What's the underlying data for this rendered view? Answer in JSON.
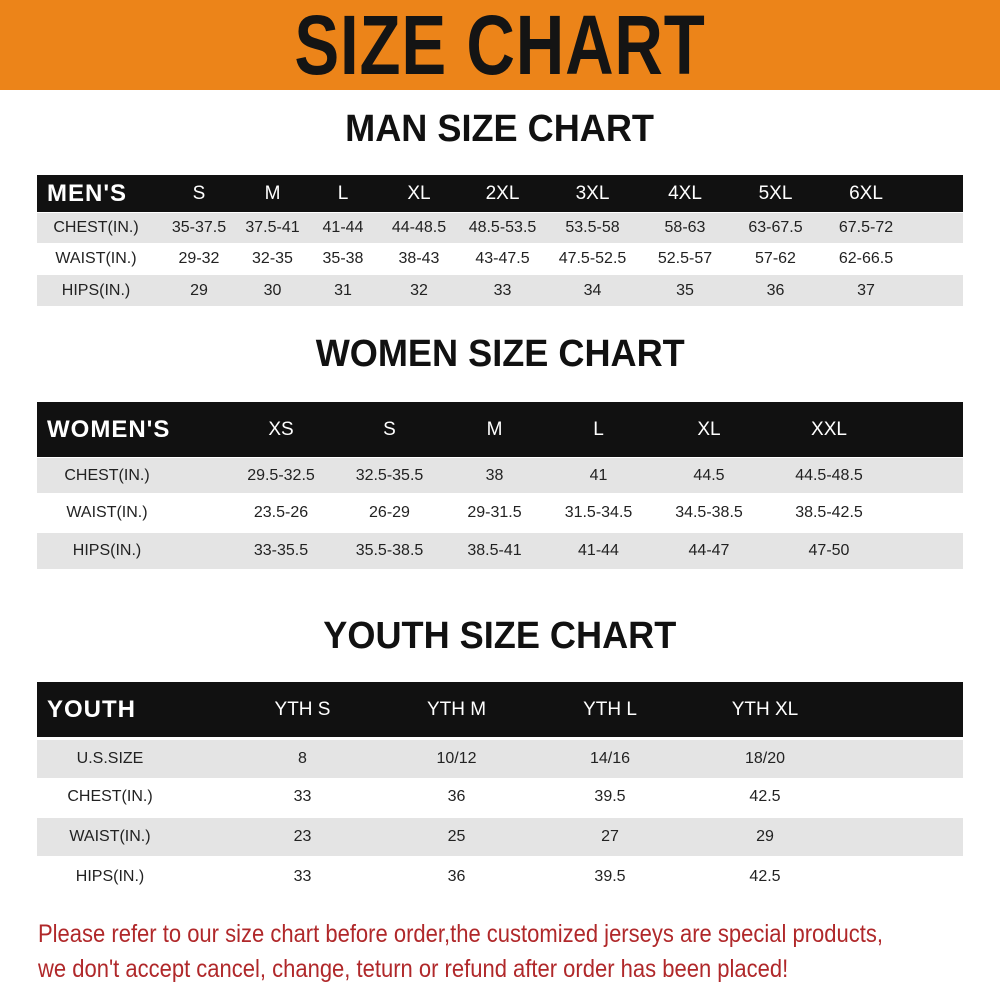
{
  "banner": {
    "title": "SIZE CHART",
    "color": "#ec8419"
  },
  "men": {
    "title": "MAN SIZE CHART",
    "header": [
      "MEN'S",
      "S",
      "M",
      "L",
      "XL",
      "2XL",
      "3XL",
      "4XL",
      "5XL",
      "6XL"
    ],
    "rows": [
      [
        "CHEST(IN.)",
        "35-37.5",
        "37.5-41",
        "41-44",
        "44-48.5",
        "48.5-53.5",
        "53.5-58",
        "58-63",
        "63-67.5",
        "67.5-72"
      ],
      [
        "WAIST(IN.)",
        "29-32",
        "32-35",
        "35-38",
        "38-43",
        "43-47.5",
        "47.5-52.5",
        "52.5-57",
        "57-62",
        "62-66.5"
      ],
      [
        "HIPS(IN.)",
        "29",
        "30",
        "31",
        "32",
        "33",
        "34",
        "35",
        "36",
        "37"
      ]
    ]
  },
  "women": {
    "title": "WOMEN SIZE CHART",
    "header": [
      "WOMEN'S",
      "XS",
      "S",
      "M",
      "L",
      "XL",
      "XXL"
    ],
    "rows": [
      [
        "CHEST(IN.)",
        "29.5-32.5",
        "32.5-35.5",
        "38",
        "41",
        "44.5",
        "44.5-48.5"
      ],
      [
        "WAIST(IN.)",
        "23.5-26",
        "26-29",
        "29-31.5",
        "31.5-34.5",
        "34.5-38.5",
        "38.5-42.5"
      ],
      [
        "HIPS(IN.)",
        "33-35.5",
        "35.5-38.5",
        "38.5-41",
        "41-44",
        "44-47",
        "47-50"
      ]
    ]
  },
  "youth": {
    "title": "YOUTH SIZE CHART",
    "header": [
      "YOUTH",
      "YTH S",
      "YTH M",
      "YTH L",
      "YTH XL"
    ],
    "rows": [
      [
        "U.S.SIZE",
        "8",
        "10/12",
        "14/16",
        "18/20"
      ],
      [
        "CHEST(IN.)",
        "33",
        "36",
        "39.5",
        "42.5"
      ],
      [
        "WAIST(IN.)",
        "23",
        "25",
        "27",
        "29"
      ],
      [
        "HIPS(IN.)",
        "33",
        "36",
        "39.5",
        "42.5"
      ]
    ]
  },
  "notice": {
    "line1": "Please refer to our size chart before order,the customized jerseys are special products,",
    "line2": "we don't accept cancel, change, teturn or refund after order has been placed!",
    "color": "#b0282a"
  }
}
